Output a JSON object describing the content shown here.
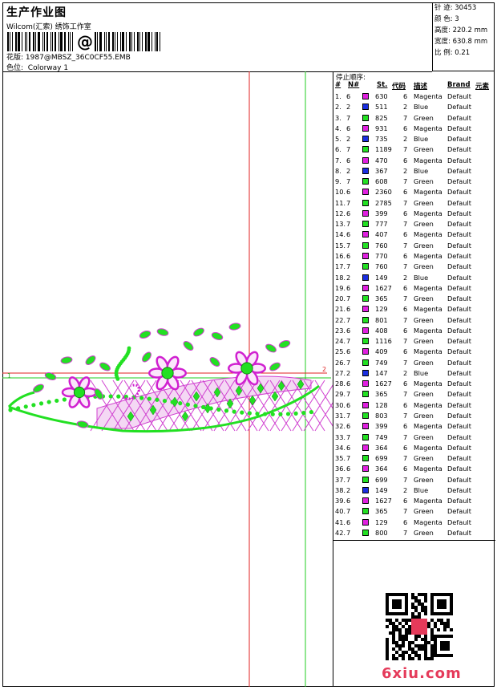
{
  "header": {
    "title": "生产作业图",
    "studio": "Wilcom(汇索) 绣饰工作室",
    "barcode_text": "@",
    "file_label": "花版:",
    "file_name": "1987@MBSZ_36C0CF55.EMB",
    "color_label": "色位:",
    "colorway": "Colorway 1"
  },
  "stats": {
    "stitches": "针 迹: 30453",
    "colors": "颜 色: 3",
    "height": "高度: 220.2 mm",
    "width": "宽度: 630.8 mm",
    "ratio": "比 例: 0.21"
  },
  "table": {
    "title": "停止顺序:",
    "headers": {
      "num": "#",
      "n": "N#",
      "st": "St.",
      "code": "代码",
      "desc": "描述",
      "brand": "Brand",
      "element": "元素"
    },
    "rows": [
      {
        "num": "1.",
        "n": "6",
        "st": "630",
        "code": "6",
        "desc": "Magenta",
        "brand": "Default"
      },
      {
        "num": "2.",
        "n": "2",
        "st": "511",
        "code": "2",
        "desc": "Blue",
        "brand": "Default"
      },
      {
        "num": "3.",
        "n": "7",
        "st": "825",
        "code": "7",
        "desc": "Green",
        "brand": "Default"
      },
      {
        "num": "4.",
        "n": "6",
        "st": "931",
        "code": "6",
        "desc": "Magenta",
        "brand": "Default"
      },
      {
        "num": "5.",
        "n": "2",
        "st": "735",
        "code": "2",
        "desc": "Blue",
        "brand": "Default"
      },
      {
        "num": "6.",
        "n": "7",
        "st": "1189",
        "code": "7",
        "desc": "Green",
        "brand": "Default"
      },
      {
        "num": "7.",
        "n": "6",
        "st": "470",
        "code": "6",
        "desc": "Magenta",
        "brand": "Default"
      },
      {
        "num": "8.",
        "n": "2",
        "st": "367",
        "code": "2",
        "desc": "Blue",
        "brand": "Default"
      },
      {
        "num": "9.",
        "n": "7",
        "st": "608",
        "code": "7",
        "desc": "Green",
        "brand": "Default"
      },
      {
        "num": "10.",
        "n": "6",
        "st": "2360",
        "code": "6",
        "desc": "Magenta",
        "brand": "Default"
      },
      {
        "num": "11.",
        "n": "7",
        "st": "2785",
        "code": "7",
        "desc": "Green",
        "brand": "Default"
      },
      {
        "num": "12.",
        "n": "6",
        "st": "399",
        "code": "6",
        "desc": "Magenta",
        "brand": "Default"
      },
      {
        "num": "13.",
        "n": "7",
        "st": "777",
        "code": "7",
        "desc": "Green",
        "brand": "Default"
      },
      {
        "num": "14.",
        "n": "6",
        "st": "407",
        "code": "6",
        "desc": "Magenta",
        "brand": "Default"
      },
      {
        "num": "15.",
        "n": "7",
        "st": "760",
        "code": "7",
        "desc": "Green",
        "brand": "Default"
      },
      {
        "num": "16.",
        "n": "6",
        "st": "770",
        "code": "6",
        "desc": "Magenta",
        "brand": "Default"
      },
      {
        "num": "17.",
        "n": "7",
        "st": "760",
        "code": "7",
        "desc": "Green",
        "brand": "Default"
      },
      {
        "num": "18.",
        "n": "2",
        "st": "149",
        "code": "2",
        "desc": "Blue",
        "brand": "Default"
      },
      {
        "num": "19.",
        "n": "6",
        "st": "1627",
        "code": "6",
        "desc": "Magenta",
        "brand": "Default"
      },
      {
        "num": "20.",
        "n": "7",
        "st": "365",
        "code": "7",
        "desc": "Green",
        "brand": "Default"
      },
      {
        "num": "21.",
        "n": "6",
        "st": "129",
        "code": "6",
        "desc": "Magenta",
        "brand": "Default"
      },
      {
        "num": "22.",
        "n": "7",
        "st": "801",
        "code": "7",
        "desc": "Green",
        "brand": "Default"
      },
      {
        "num": "23.",
        "n": "6",
        "st": "408",
        "code": "6",
        "desc": "Magenta",
        "brand": "Default"
      },
      {
        "num": "24.",
        "n": "7",
        "st": "1116",
        "code": "7",
        "desc": "Green",
        "brand": "Default"
      },
      {
        "num": "25.",
        "n": "6",
        "st": "409",
        "code": "6",
        "desc": "Magenta",
        "brand": "Default"
      },
      {
        "num": "26.",
        "n": "7",
        "st": "749",
        "code": "7",
        "desc": "Green",
        "brand": "Default"
      },
      {
        "num": "27.",
        "n": "2",
        "st": "147",
        "code": "2",
        "desc": "Blue",
        "brand": "Default"
      },
      {
        "num": "28.",
        "n": "6",
        "st": "1627",
        "code": "6",
        "desc": "Magenta",
        "brand": "Default"
      },
      {
        "num": "29.",
        "n": "7",
        "st": "365",
        "code": "7",
        "desc": "Green",
        "brand": "Default"
      },
      {
        "num": "30.",
        "n": "6",
        "st": "128",
        "code": "6",
        "desc": "Magenta",
        "brand": "Default"
      },
      {
        "num": "31.",
        "n": "7",
        "st": "803",
        "code": "7",
        "desc": "Green",
        "brand": "Default"
      },
      {
        "num": "32.",
        "n": "6",
        "st": "399",
        "code": "6",
        "desc": "Magenta",
        "brand": "Default"
      },
      {
        "num": "33.",
        "n": "7",
        "st": "749",
        "code": "7",
        "desc": "Green",
        "brand": "Default"
      },
      {
        "num": "34.",
        "n": "6",
        "st": "364",
        "code": "6",
        "desc": "Magenta",
        "brand": "Default"
      },
      {
        "num": "35.",
        "n": "7",
        "st": "699",
        "code": "7",
        "desc": "Green",
        "brand": "Default"
      },
      {
        "num": "36.",
        "n": "6",
        "st": "364",
        "code": "6",
        "desc": "Magenta",
        "brand": "Default"
      },
      {
        "num": "37.",
        "n": "7",
        "st": "699",
        "code": "7",
        "desc": "Green",
        "brand": "Default"
      },
      {
        "num": "38.",
        "n": "2",
        "st": "149",
        "code": "2",
        "desc": "Blue",
        "brand": "Default"
      },
      {
        "num": "39.",
        "n": "6",
        "st": "1627",
        "code": "6",
        "desc": "Magenta",
        "brand": "Default"
      },
      {
        "num": "40.",
        "n": "7",
        "st": "365",
        "code": "7",
        "desc": "Green",
        "brand": "Default"
      },
      {
        "num": "41.",
        "n": "6",
        "st": "129",
        "code": "6",
        "desc": "Magenta",
        "brand": "Default"
      },
      {
        "num": "42.",
        "n": "7",
        "st": "800",
        "code": "7",
        "desc": "Green",
        "brand": "Default"
      }
    ]
  },
  "colors": {
    "Magenta": "#e020e0",
    "Blue": "#1a2ee0",
    "Green": "#22e022",
    "guide_red": "#e02020",
    "guide_green": "#22cc22"
  },
  "canvas": {
    "marker_left": "1",
    "marker_right": "2"
  },
  "watermark": {
    "brand": "6xiu.com"
  }
}
